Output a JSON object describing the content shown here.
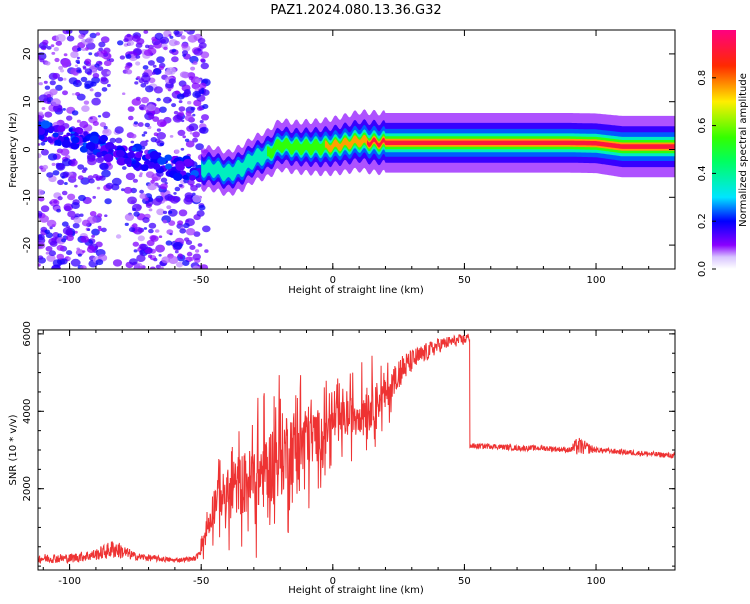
{
  "title": "PAZ1.2024.080.13.36.G32",
  "chart_data": [
    {
      "type": "heatmap",
      "xlabel": "Height of straight line (km)",
      "ylabel": "Frequency (Hz)",
      "xlim": [
        -112,
        130
      ],
      "ylim": [
        -25,
        25
      ],
      "xticks": [
        -100,
        -50,
        0,
        50,
        100
      ],
      "yticks": [
        -20,
        -10,
        0,
        10,
        20
      ],
      "xtick_labels": [
        "-100",
        "-50",
        "0",
        "50",
        "100"
      ],
      "ytick_labels": [
        "-20",
        "-10",
        "0",
        "10",
        "20"
      ],
      "colorbar": {
        "label": "Normalized spectral amplitude",
        "range": [
          0,
          1
        ],
        "ticks": [
          0.0,
          0.2,
          0.4,
          0.6,
          0.8
        ],
        "tick_labels": [
          "0.0",
          "0.2",
          "0.4",
          "0.6",
          "0.8"
        ]
      },
      "ridge": {
        "x": [
          -50,
          -45,
          -40,
          -35,
          -30,
          -25,
          -20,
          -15,
          -10,
          -5,
          0,
          5,
          10,
          15,
          20,
          30,
          40,
          50,
          60,
          70,
          80,
          90,
          100,
          110,
          120,
          130
        ],
        "freq": [
          -4,
          -4,
          -5,
          -4,
          -2,
          -1,
          1,
          0.5,
          0.5,
          0.5,
          0.7,
          1.2,
          1.8,
          1.5,
          1.4,
          1.4,
          1.4,
          1.4,
          1.4,
          1.4,
          1.4,
          1.4,
          1.3,
          0.6,
          0.6,
          0.6
        ],
        "amp": [
          0.35,
          0.4,
          0.4,
          0.45,
          0.45,
          0.5,
          0.6,
          0.6,
          0.65,
          0.7,
          0.75,
          0.8,
          0.85,
          0.9,
          0.9,
          0.9,
          0.9,
          0.9,
          0.9,
          0.9,
          0.9,
          0.9,
          0.9,
          0.95,
          0.95,
          0.95
        ]
      },
      "noisy_trace": {
        "x": [
          -112,
          -105,
          -100,
          -95,
          -90,
          -85,
          -80,
          -75,
          -70,
          -65,
          -60,
          -55,
          -50
        ],
        "freq": [
          4,
          3,
          2.5,
          2,
          1,
          0,
          -1,
          -1.5,
          -2,
          -3,
          -4,
          -4,
          -5
        ]
      }
    },
    {
      "type": "line",
      "xlabel": "Height of straight line (km)",
      "ylabel": "SNR (10 * v/v)",
      "xlim": [
        -112,
        130
      ],
      "ylim": [
        -100,
        6100
      ],
      "xticks": [
        -100,
        -50,
        0,
        50,
        100
      ],
      "yticks": [
        2000,
        4000,
        6000
      ],
      "xtick_labels": [
        "-100",
        "-50",
        "0",
        "50",
        "100"
      ],
      "ytick_labels": [
        "2000",
        "4000",
        "6000"
      ],
      "color": "#ee3333",
      "envelope": {
        "x": [
          -112,
          -100,
          -90,
          -83,
          -75,
          -60,
          -52,
          -48,
          -44,
          -40,
          -36,
          -30,
          -25,
          -20,
          -15,
          -10,
          -5,
          0,
          5,
          10,
          15,
          20,
          25,
          30,
          35,
          40,
          45,
          50,
          51,
          52,
          60,
          70,
          80,
          90,
          93,
          100,
          110,
          120,
          130
        ],
        "y": [
          200,
          200,
          300,
          450,
          250,
          150,
          200,
          900,
          1900,
          1800,
          2100,
          2200,
          2500,
          2900,
          3100,
          3300,
          3400,
          3700,
          3800,
          4000,
          4200,
          4400,
          5000,
          5300,
          5500,
          5700,
          5800,
          5850,
          5900,
          3100,
          3100,
          3050,
          3050,
          3000,
          3100,
          3000,
          2950,
          2900,
          2850
        ],
        "amplitude": [
          120,
          120,
          150,
          250,
          100,
          60,
          60,
          500,
          700,
          900,
          1100,
          1300,
          1400,
          1500,
          1400,
          1300,
          900,
          700,
          700,
          800,
          800,
          600,
          450,
          300,
          250,
          200,
          150,
          150,
          150,
          70,
          70,
          70,
          70,
          70,
          250,
          70,
          70,
          70,
          70
        ]
      }
    }
  ]
}
